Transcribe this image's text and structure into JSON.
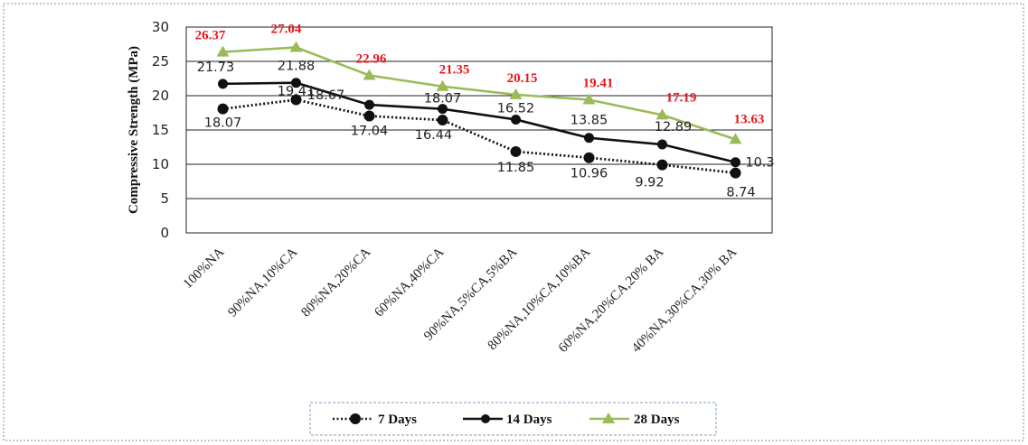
{
  "chart_data": {
    "type": "line",
    "title": "",
    "xlabel": "",
    "ylabel": "Compressive Strength (MPa)",
    "ylim": [
      0,
      30
    ],
    "yticks": [
      "0",
      "5",
      "10",
      "15",
      "20",
      "25",
      "30"
    ],
    "grid": "horizontal",
    "legend_position": "bottom",
    "categories": [
      "100%NA",
      "90%NA,10%CA",
      "80%NA,20%CA",
      "60%NA,40%CA",
      "90%NA,5%CA,5%BA",
      "80%NA,10%CA,10%BA",
      "60%NA,20%CA,20% BA",
      "40%NA,30%CA,30% BA"
    ],
    "series": [
      {
        "name": "7 Days",
        "color": "#111111",
        "line_style": "dotted",
        "marker": "circle",
        "values": [
          18.07,
          19.41,
          17.04,
          16.44,
          11.85,
          10.96,
          9.92,
          8.74
        ],
        "labels": [
          "18.07",
          "19.41",
          "17.04",
          "16.44",
          "11.85",
          "10.96",
          "9.92",
          "8.74"
        ]
      },
      {
        "name": "14 Days",
        "color": "#111111",
        "line_style": "solid",
        "marker": "circle",
        "values": [
          21.73,
          21.88,
          18.67,
          18.07,
          16.52,
          13.85,
          12.89,
          10.3
        ],
        "labels": [
          "21.73",
          "21.88",
          "18.67",
          "18.07",
          "16.52",
          "13.85",
          "12.89",
          "10.3"
        ]
      },
      {
        "name": "28 Days",
        "color": "#9bbb59",
        "line_style": "solid",
        "marker": "triangle",
        "label_color": "#e8161b",
        "values": [
          26.37,
          27.04,
          22.96,
          21.35,
          20.15,
          19.41,
          17.19,
          13.63
        ],
        "labels": [
          "26.37",
          "27.04",
          "22.96",
          "21.35",
          "20.15",
          "19.41",
          "17.19",
          "13.63"
        ]
      }
    ]
  }
}
